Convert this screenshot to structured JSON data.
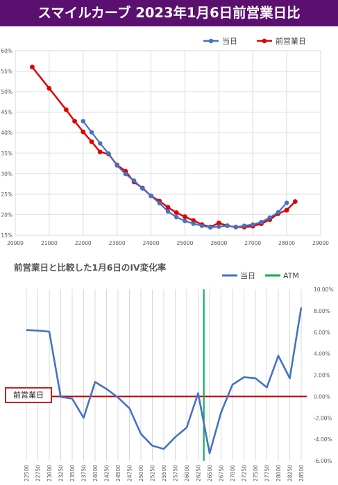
{
  "banner": {
    "title": "スマイルカーブ 2023年1月6日前営業日比"
  },
  "colors": {
    "banner": "#5b1070",
    "current": "#4472c4",
    "previous": "#e00000",
    "atm": "#00b050",
    "zero_line": "#c00000"
  },
  "chart_data": [
    {
      "type": "line",
      "title": "",
      "x_ticks": [
        "20000",
        "21000",
        "22000",
        "23000",
        "24000",
        "25000",
        "26000",
        "27000",
        "28000",
        "29000"
      ],
      "y_ticks": [
        "15%",
        "20%",
        "25%",
        "30%",
        "35%",
        "40%",
        "45%",
        "50%",
        "55%",
        "60%"
      ],
      "xlim": [
        20000,
        29000
      ],
      "ylim": [
        15,
        60
      ],
      "y_unit": "%",
      "legend": {
        "placement": "top-right"
      },
      "grid": true,
      "series": [
        {
          "name": "当日",
          "color": "#4472c4",
          "x": [
            22000,
            22250,
            22500,
            22750,
            23000,
            23250,
            23500,
            23750,
            24000,
            24250,
            24500,
            24750,
            25000,
            25250,
            25500,
            25750,
            26000,
            26250,
            26500,
            26750,
            27000,
            27250,
            27500,
            27750,
            28000
          ],
          "y": [
            42.8,
            40.1,
            37.4,
            34.9,
            32.0,
            29.9,
            28.3,
            26.4,
            24.6,
            22.8,
            20.8,
            19.4,
            18.5,
            17.8,
            17.3,
            16.9,
            17.1,
            17.3,
            17.0,
            17.3,
            17.6,
            18.2,
            19.3,
            20.6,
            22.9
          ]
        },
        {
          "name": "前営業日",
          "color": "#e00000",
          "x": [
            20500,
            21000,
            21500,
            21750,
            22000,
            22250,
            22500,
            22750,
            23000,
            23250,
            23500,
            23750,
            24000,
            24250,
            24500,
            24750,
            25000,
            25250,
            25500,
            25750,
            26000,
            26250,
            26500,
            26750,
            27000,
            27250,
            27500,
            27750,
            28000,
            28250
          ],
          "y": [
            56.0,
            50.8,
            45.6,
            42.8,
            40.2,
            37.8,
            35.3,
            34.8,
            32.1,
            30.6,
            28.0,
            26.5,
            24.6,
            23.3,
            21.8,
            20.5,
            19.5,
            18.6,
            17.6,
            17.0,
            18.0,
            17.3,
            17.0,
            17.0,
            17.2,
            17.8,
            18.8,
            20.3,
            21.1,
            23.2
          ]
        }
      ]
    },
    {
      "type": "line",
      "title": "前営業日と比較した1月6日のIV変化率",
      "categories": [
        "22500",
        "22750",
        "23000",
        "23250",
        "23500",
        "23750",
        "24000",
        "24250",
        "24500",
        "24750",
        "25000",
        "25250",
        "25500",
        "25750",
        "26000",
        "26250",
        "26500",
        "26750",
        "27000",
        "27250",
        "27500",
        "27750",
        "28000",
        "28250",
        "28500"
      ],
      "y_ticks": [
        "-6.00%",
        "-4.00%",
        "-2.00%",
        "0.00%",
        "2.00%",
        "4.00%",
        "6.00%",
        "8.00%",
        "10.00%"
      ],
      "ylim": [
        -6,
        10
      ],
      "y_unit": "%",
      "grid": true,
      "legend": {
        "placement": "top-right"
      },
      "series": [
        {
          "name": "当日",
          "color": "#4472c4",
          "values": [
            6.2,
            6.15,
            6.05,
            -0.05,
            -0.2,
            -2.0,
            1.35,
            0.7,
            -0.1,
            -1.1,
            -3.5,
            -4.6,
            -4.9,
            -3.8,
            -2.9,
            0.3,
            -5.3,
            -1.5,
            1.1,
            1.8,
            1.7,
            0.85,
            3.8,
            1.7,
            8.3
          ]
        }
      ],
      "atm": {
        "label": "ATM",
        "x": 26375,
        "color": "#00b050"
      },
      "reference": {
        "label": "前営業日",
        "y": 0
      }
    }
  ]
}
